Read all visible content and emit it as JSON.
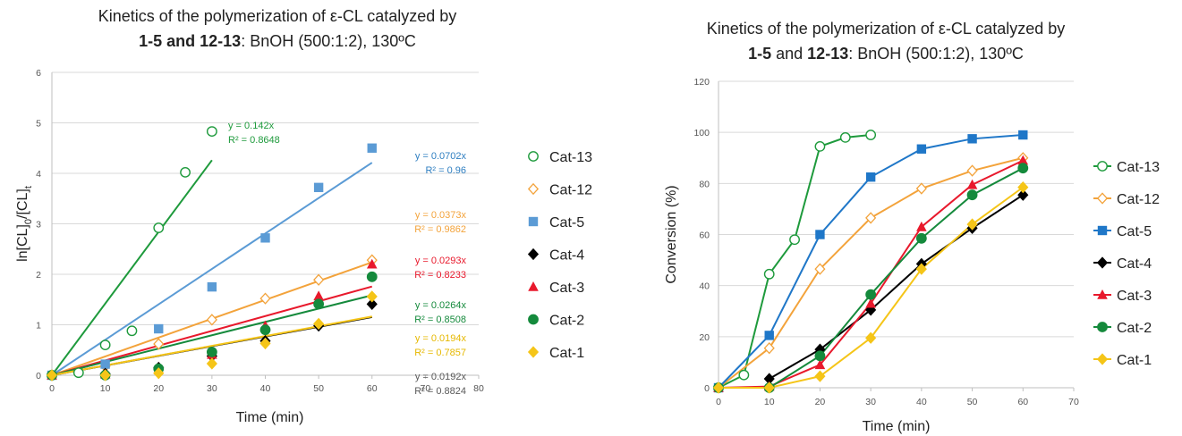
{
  "left_title": {
    "line1": "Kinetics of the polymerization of ε-CL catalyzed by",
    "line2_bold": "1-5 and 12-13",
    "line2_rest": ": BnOH (500:1:2), 130ºC"
  },
  "right_title": {
    "line1": "Kinetics of the polymerization of ε-CL catalyzed by",
    "line2_bold_a": "1-5",
    "line2_mid": " and ",
    "line2_bold_b": "12-13",
    "line2_rest": ": BnOH (500:1:2), 130ºC"
  },
  "chart_data": [
    {
      "type": "scatter",
      "title": "Kinetics of the polymerization of ε-CL catalyzed by 1-5 and 12-13: BnOH (500:1:2), 130ºC",
      "xlabel": "Time (min)",
      "ylabel_main": "ln[CL]",
      "ylabel_sub1": "0",
      "ylabel_mid": "/[CL]",
      "ylabel_sub2": "t",
      "xlim": [
        0,
        80
      ],
      "ylim": [
        0,
        6
      ],
      "xticks": [
        0,
        10,
        20,
        30,
        40,
        50,
        60,
        70,
        80
      ],
      "yticks": [
        0,
        1,
        2,
        3,
        4,
        5,
        6
      ],
      "grid": "horizontal",
      "legend_position": "right",
      "series": [
        {
          "name": "Cat-13",
          "color": "#1e9a3c",
          "marker": "circle-open",
          "x": [
            0,
            5,
            10,
            15,
            20,
            25,
            30
          ],
          "y": [
            0,
            0.05,
            0.6,
            0.88,
            2.92,
            4.02,
            4.83
          ],
          "fit_slope": 0.142,
          "fit_xmax": 30,
          "eq": "y = 0.142x",
          "r2": "R² = 0.8648"
        },
        {
          "name": "Cat-12",
          "color": "#f3a33b",
          "marker": "diamond-open",
          "x": [
            0,
            10,
            20,
            30,
            40,
            50,
            60
          ],
          "y": [
            0,
            0.18,
            0.62,
            1.1,
            1.52,
            1.89,
            2.28
          ],
          "fit_slope": 0.0373,
          "fit_xmax": 60,
          "eq": "y = 0.0373x",
          "r2": "R² = 0.9862"
        },
        {
          "name": "Cat-5",
          "color": "#5b9bd5",
          "marker": "square",
          "x": [
            0,
            10,
            20,
            30,
            40,
            50,
            60
          ],
          "y": [
            0,
            0.22,
            0.92,
            1.75,
            2.72,
            3.72,
            4.5
          ],
          "fit_slope": 0.0702,
          "fit_xmax": 60,
          "eq": "y = 0.0702x",
          "r2": "R² = 0.96"
        },
        {
          "name": "Cat-4",
          "color": "#000000",
          "marker": "diamond",
          "x": [
            0,
            10,
            20,
            30,
            40,
            50,
            60
          ],
          "y": [
            0,
            0.03,
            0.15,
            0.38,
            0.68,
            0.98,
            1.41
          ],
          "fit_slope": 0.0192,
          "fit_xmax": 60,
          "eq": "y = 0.0192x",
          "r2": "R² = 0.8824"
        },
        {
          "name": "Cat-3",
          "color": "#e8192c",
          "marker": "triangle",
          "x": [
            0,
            10,
            20,
            30,
            40,
            50,
            60
          ],
          "y": [
            0,
            0.02,
            0.12,
            0.41,
            0.98,
            1.57,
            2.2
          ],
          "fit_slope": 0.0293,
          "fit_xmax": 60,
          "eq": "y = 0.0293x",
          "r2": "R² = 0.8233"
        },
        {
          "name": "Cat-2",
          "color": "#158a3c",
          "marker": "circle",
          "x": [
            0,
            10,
            20,
            30,
            40,
            50,
            60
          ],
          "y": [
            0,
            0.0,
            0.13,
            0.46,
            0.9,
            1.41,
            1.95
          ],
          "fit_slope": 0.0264,
          "fit_xmax": 60,
          "eq": "y = 0.0264x",
          "r2": "R² = 0.8508"
        },
        {
          "name": "Cat-1",
          "color": "#f5c518",
          "marker": "diamond",
          "x": [
            0,
            10,
            20,
            30,
            40,
            50,
            60
          ],
          "y": [
            0,
            0.0,
            0.04,
            0.23,
            0.63,
            1.02,
            1.56
          ],
          "fit_slope": 0.0194,
          "fit_xmax": 60,
          "eq": "y = 0.0194x",
          "r2": "R² = 0.7857"
        }
      ]
    },
    {
      "type": "line",
      "title": "Kinetics of the polymerization of ε-CL catalyzed by 1-5 and 12-13: BnOH (500:1:2), 130ºC",
      "xlabel": "Time (min)",
      "ylabel": "Conversion (%)",
      "xlim": [
        0,
        70
      ],
      "ylim": [
        0,
        120
      ],
      "xticks": [
        0,
        10,
        20,
        30,
        40,
        50,
        60,
        70
      ],
      "yticks": [
        0,
        20,
        40,
        60,
        80,
        100,
        120
      ],
      "grid": "horizontal",
      "legend_position": "right",
      "series": [
        {
          "name": "Cat-13",
          "color": "#1e9a3c",
          "marker": "circle-open",
          "x": [
            0,
            5,
            10,
            15,
            20,
            25,
            30
          ],
          "y": [
            0,
            5,
            44.5,
            58,
            94.5,
            98,
            99
          ]
        },
        {
          "name": "Cat-12",
          "color": "#f3a33b",
          "marker": "diamond-open",
          "x": [
            0,
            10,
            20,
            30,
            40,
            50,
            60
          ],
          "y": [
            0,
            15.5,
            46.5,
            66.5,
            78,
            85,
            90
          ]
        },
        {
          "name": "Cat-5",
          "color": "#1f77c8",
          "marker": "square",
          "x": [
            0,
            10,
            20,
            30,
            40,
            50,
            60
          ],
          "y": [
            0,
            20.5,
            60,
            82.5,
            93.5,
            97.5,
            99
          ]
        },
        {
          "name": "Cat-4",
          "color": "#000000",
          "marker": "diamond",
          "x": [
            10,
            20,
            30,
            40,
            50,
            60
          ],
          "y": [
            3.5,
            15,
            30.5,
            48.5,
            62.5,
            75.5
          ]
        },
        {
          "name": "Cat-3",
          "color": "#e8192c",
          "marker": "triangle",
          "x": [
            0,
            10,
            20,
            30,
            40,
            50,
            60
          ],
          "y": [
            0,
            0.5,
            9,
            33,
            63,
            79.5,
            89
          ]
        },
        {
          "name": "Cat-2",
          "color": "#158a3c",
          "marker": "circle",
          "x": [
            0,
            10,
            20,
            30,
            40,
            50,
            60
          ],
          "y": [
            0,
            0,
            12.5,
            36.5,
            58.5,
            75.5,
            86
          ]
        },
        {
          "name": "Cat-1",
          "color": "#f5c518",
          "marker": "diamond",
          "x": [
            0,
            10,
            20,
            30,
            40,
            50,
            60
          ],
          "y": [
            0,
            0,
            4.5,
            19.5,
            46.5,
            64,
            78.5
          ]
        }
      ]
    }
  ]
}
